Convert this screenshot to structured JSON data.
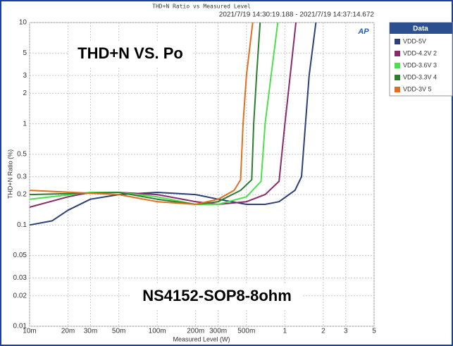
{
  "chart_data": {
    "type": "line",
    "title": "THD+N Ratio vs Measured Level",
    "subtitle": "2021/7/19 14:30:19.188 - 2021/7/19 14:37:14.672",
    "x_label": "Measured Level (W)",
    "y_label": "THD+N Ratio (%)",
    "logo": "AP",
    "legend_title": "Data",
    "annotations": [
      "THD+N VS. Po",
      "NS4152-SOP8-8ohm"
    ],
    "xscale": "log",
    "yscale": "log",
    "grid": true,
    "legend": "right",
    "xlim": [
      0.01,
      5
    ],
    "ylim": [
      0.01,
      10
    ],
    "xticks": [
      {
        "value": 0.01,
        "label": "10m"
      },
      {
        "value": 0.02,
        "label": "20m"
      },
      {
        "value": 0.03,
        "label": "30m"
      },
      {
        "value": 0.05,
        "label": "50m"
      },
      {
        "value": 0.1,
        "label": "100m"
      },
      {
        "value": 0.2,
        "label": "200m"
      },
      {
        "value": 0.3,
        "label": "300m"
      },
      {
        "value": 0.5,
        "label": "500m"
      },
      1,
      2,
      3,
      5
    ],
    "yticks": [
      10,
      5,
      3,
      2,
      1,
      0.5,
      0.3,
      0.2,
      0.1,
      0.05,
      0.03,
      0.02,
      0.01
    ],
    "series": [
      {
        "name": "VDD-5V",
        "color": "#2b3f7a",
        "x": [
          0.01,
          0.015,
          0.02,
          0.03,
          0.05,
          0.1,
          0.2,
          0.3,
          0.5,
          0.7,
          0.9,
          1.2,
          1.35,
          1.45,
          1.55,
          1.75
        ],
        "values": [
          0.1,
          0.11,
          0.14,
          0.18,
          0.2,
          0.21,
          0.2,
          0.18,
          0.16,
          0.16,
          0.17,
          0.22,
          0.3,
          1,
          3,
          10
        ]
      },
      {
        "name": "VDD-4.2V 2",
        "color": "#8b2a6b",
        "x": [
          0.01,
          0.02,
          0.03,
          0.05,
          0.1,
          0.2,
          0.3,
          0.5,
          0.7,
          0.9,
          1.0,
          1.1,
          1.22
        ],
        "values": [
          0.15,
          0.19,
          0.21,
          0.21,
          0.2,
          0.17,
          0.16,
          0.17,
          0.2,
          0.27,
          1,
          3,
          10
        ]
      },
      {
        "name": "VDD-3.6V 3",
        "color": "#4ce04c",
        "x": [
          0.01,
          0.03,
          0.05,
          0.1,
          0.2,
          0.3,
          0.5,
          0.65,
          0.7,
          0.78,
          0.88
        ],
        "values": [
          0.18,
          0.21,
          0.21,
          0.19,
          0.16,
          0.16,
          0.19,
          0.27,
          1,
          3,
          10
        ]
      },
      {
        "name": "VDD-3.3V 4",
        "color": "#2e7d32",
        "x": [
          0.01,
          0.05,
          0.1,
          0.2,
          0.3,
          0.45,
          0.55,
          0.57,
          0.6,
          0.64
        ],
        "values": [
          0.2,
          0.21,
          0.18,
          0.16,
          0.17,
          0.22,
          0.28,
          1,
          3,
          10
        ]
      },
      {
        "name": "VDD-3V 5",
        "color": "#e07020",
        "x": [
          0.01,
          0.05,
          0.1,
          0.2,
          0.3,
          0.4,
          0.45,
          0.47,
          0.5,
          0.56
        ],
        "values": [
          0.22,
          0.2,
          0.17,
          0.16,
          0.18,
          0.22,
          0.28,
          1,
          3,
          10
        ]
      }
    ]
  }
}
